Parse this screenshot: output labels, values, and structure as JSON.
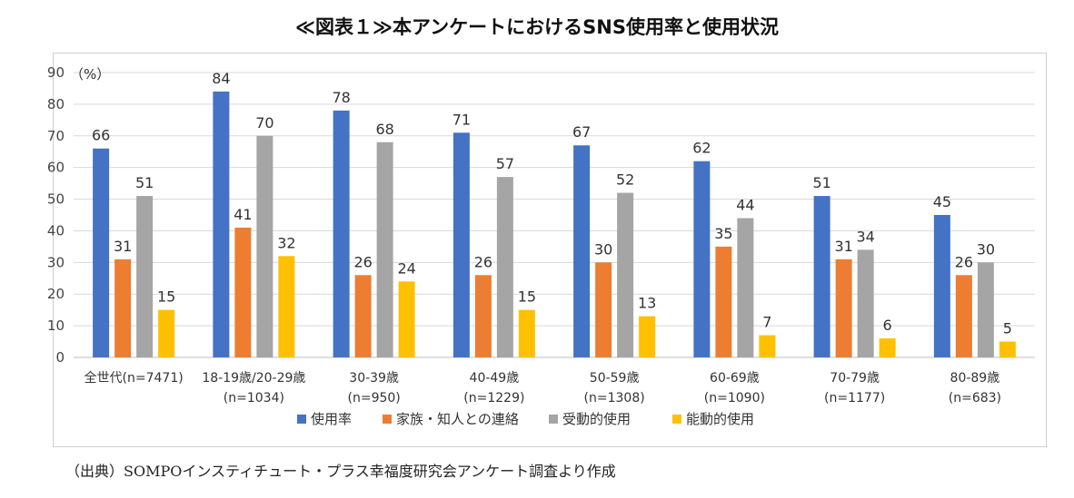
{
  "title": "≪図表１≫本アンケートにおけるSNS使用率と使用状況",
  "source": "（出典）SOMPOインスティチュート・プラス幸福度研究会アンケート調査より作成",
  "chart_data": {
    "type": "bar",
    "unit_label": "（%）",
    "ylim": [
      0,
      90
    ],
    "yticks": [
      "0",
      "10",
      "20",
      "30",
      "40",
      "50",
      "60",
      "70",
      "80",
      "90"
    ],
    "grid": true,
    "legend_position": "bottom",
    "categories": [
      {
        "line1": "全世代(n=7471)",
        "line2": ""
      },
      {
        "line1": "18-19歳/20-29歳",
        "line2": "(n=1034)"
      },
      {
        "line1": "30-39歳",
        "line2": "(n=950)"
      },
      {
        "line1": "40-49歳",
        "line2": "(n=1229)"
      },
      {
        "line1": "50-59歳",
        "line2": "(n=1308)"
      },
      {
        "line1": "60-69歳",
        "line2": "(n=1090)"
      },
      {
        "line1": "70-79歳",
        "line2": "(n=1177)"
      },
      {
        "line1": "80-89歳",
        "line2": "(n=683)"
      }
    ],
    "series": [
      {
        "name": "使用率",
        "color": "#4472c4",
        "values": [
          66,
          84,
          78,
          71,
          67,
          62,
          51,
          45
        ]
      },
      {
        "name": "家族・知人との連絡",
        "color": "#ed7d31",
        "values": [
          31,
          41,
          26,
          26,
          30,
          35,
          31,
          26
        ]
      },
      {
        "name": "受動的使用",
        "color": "#a5a5a5",
        "values": [
          51,
          70,
          68,
          57,
          52,
          44,
          34,
          30
        ]
      },
      {
        "name": "能動的使用",
        "color": "#ffc000",
        "values": [
          15,
          32,
          24,
          15,
          13,
          7,
          6,
          5
        ]
      }
    ]
  }
}
